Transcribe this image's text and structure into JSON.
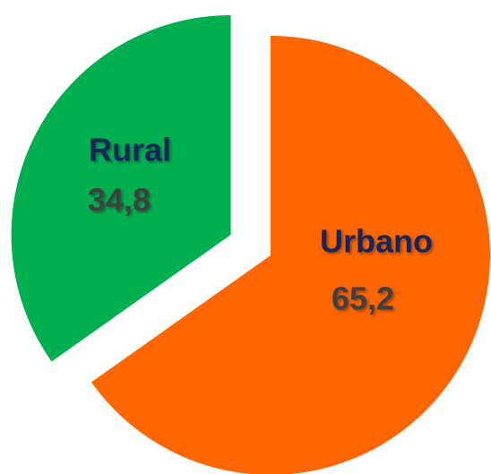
{
  "chart_data": {
    "type": "pie",
    "categories": [
      "Urbano",
      "Rural"
    ],
    "values": [
      65.2,
      34.8
    ],
    "value_labels": [
      "65,2",
      "34,8"
    ],
    "colors": [
      "#ff6600",
      "#00b050"
    ]
  }
}
